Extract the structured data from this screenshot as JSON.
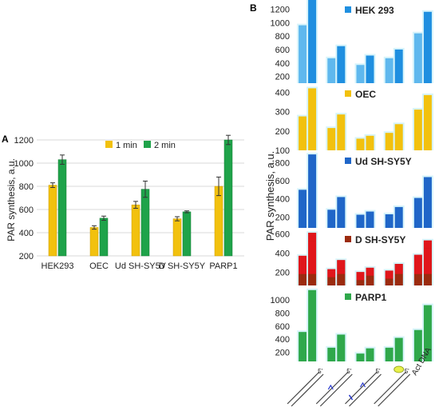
{
  "colors": {
    "gold": "#f2c10e",
    "gold_dark": "#c99a00",
    "green": "#1fa34a",
    "green_dark": "#137a33",
    "hek_light": "#5fb8ee",
    "hek_dark": "#1f8fe0",
    "ud": "#1f66c8",
    "red": "#e0161b",
    "brown": "#9b2b0f",
    "parp": "#2fa84b",
    "shadow_cyan": "#d7f4fb",
    "grid": "#d9d9d9",
    "dna": "#444444",
    "mark_blue": "#2233cc",
    "mark_yellow": "#e8f04a"
  },
  "panel_a": {
    "label": "A",
    "ylabel": "PAR synthesis, a.u.",
    "legend": [
      "1 min",
      "2 min"
    ]
  },
  "panel_b": {
    "label": "B",
    "ylabel": "PAR synthesis, a.u.",
    "x_last_label": "Act DNA",
    "strand_marks": [
      "5'",
      "5'",
      "5'",
      "5'"
    ]
  },
  "chart_data": [
    {
      "type": "bar",
      "ylabel": "PAR synthesis, a.u.",
      "ylim": [
        200,
        1200
      ],
      "yticks": [
        200,
        400,
        600,
        800,
        1000,
        1200
      ],
      "grid": true,
      "legend_position": "top",
      "categories": [
        "HEK293",
        "OEC",
        "Ud SH-SY5Y",
        "D SH-SY5Y",
        "PARP1"
      ],
      "series": [
        {
          "name": "1 min",
          "values": [
            810,
            445,
            640,
            520,
            800
          ],
          "errors": [
            20,
            15,
            30,
            18,
            80
          ]
        },
        {
          "name": "2 min",
          "values": [
            1030,
            525,
            775,
            580,
            1200
          ],
          "errors": [
            40,
            18,
            70,
            8,
            40
          ]
        }
      ]
    },
    {
      "type": "bar",
      "title": "HEK 293",
      "ylim": [
        100,
        1300
      ],
      "yticks": [
        200,
        400,
        600,
        800,
        1000,
        1200
      ],
      "series": [
        {
          "values": [
            960,
            470,
            370,
            470,
            840
          ]
        },
        {
          "values": [
            1350,
            650,
            510,
            600,
            1160
          ]
        }
      ]
    },
    {
      "type": "bar",
      "title": "OEC",
      "ylim": [
        100,
        430
      ],
      "yticks": [
        100,
        200,
        300,
        400
      ],
      "series": [
        {
          "values": [
            275,
            215,
            160,
            190,
            310
          ]
        },
        {
          "values": [
            420,
            285,
            175,
            235,
            385
          ]
        }
      ]
    },
    {
      "type": "bar",
      "title": "Ud SH-SY5Y",
      "ylim": [
        80,
        900
      ],
      "yticks": [
        200,
        400,
        600,
        800
      ],
      "series": [
        {
          "values": [
            500,
            280,
            225,
            230,
            410
          ]
        },
        {
          "values": [
            890,
            420,
            260,
            310,
            640
          ]
        }
      ]
    },
    {
      "type": "bar",
      "title": "D SH-SY5Y",
      "ylim": [
        60,
        620
      ],
      "yticks": [
        200,
        400,
        600
      ],
      "series": [
        {
          "values": [
            370,
            230,
            200,
            215,
            380
          ]
        },
        {
          "values": [
            610,
            325,
            245,
            285,
            530
          ]
        }
      ]
    },
    {
      "type": "bar",
      "title": "PARP1",
      "ylim": [
        60,
        1160
      ],
      "yticks": [
        200,
        400,
        600,
        800,
        1000
      ],
      "series": [
        {
          "values": [
            510,
            270,
            180,
            270,
            540
          ]
        },
        {
          "values": [
            1150,
            470,
            260,
            420,
            920
          ]
        }
      ]
    }
  ]
}
